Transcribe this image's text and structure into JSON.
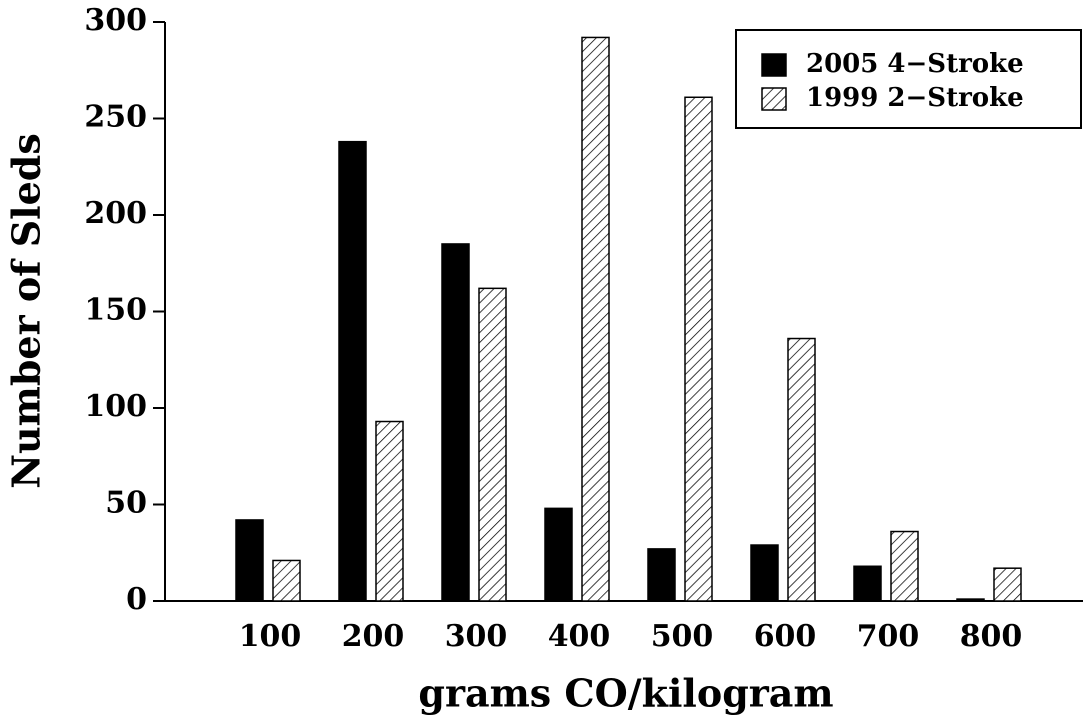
{
  "chart_data": {
    "type": "bar",
    "x_label": "grams CO/kilogram",
    "y_label": "Number of Sleds",
    "categories": [
      "100",
      "200",
      "300",
      "400",
      "500",
      "600",
      "700",
      "800"
    ],
    "series": [
      {
        "name": "2005 4−Stroke",
        "color": "#000000",
        "hatch": false,
        "values": [
          42,
          238,
          185,
          48,
          27,
          29,
          18,
          1
        ]
      },
      {
        "name": "1999 2−Stroke",
        "color": "#000000",
        "hatch": true,
        "values": [
          21,
          93,
          162,
          292,
          261,
          136,
          36,
          17
        ]
      }
    ],
    "ylim": [
      0,
      300
    ],
    "yticks": [
      0,
      50,
      100,
      150,
      200,
      250,
      300
    ],
    "legend": "upper right"
  }
}
